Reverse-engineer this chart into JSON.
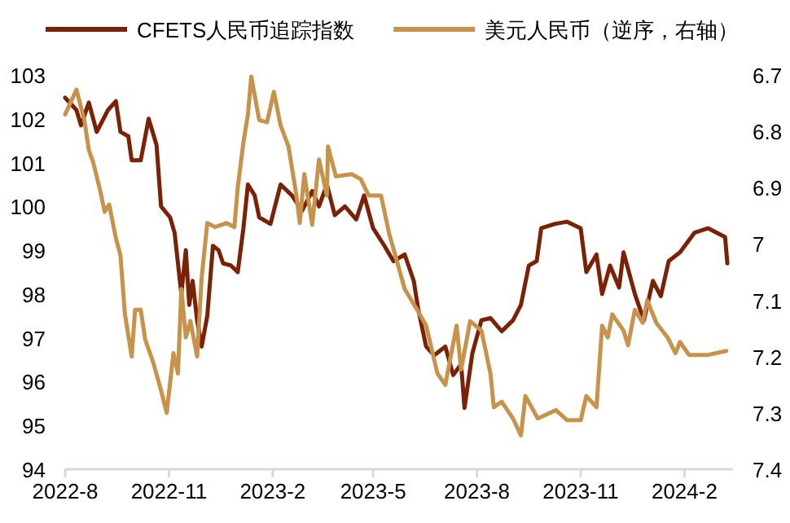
{
  "chart_data": {
    "type": "line",
    "legend": "top",
    "grid": false,
    "xlim": [
      "2022-08-01",
      "2024-03-15"
    ],
    "xticks": [
      {
        "value": "2022-08-01",
        "label": "2022-8"
      },
      {
        "value": "2022-11-01",
        "label": "2022-11"
      },
      {
        "value": "2023-02-01",
        "label": "2023-2"
      },
      {
        "value": "2023-05-01",
        "label": "2023-5"
      },
      {
        "value": "2023-08-01",
        "label": "2023-8"
      },
      {
        "value": "2023-11-01",
        "label": "2023-11"
      },
      {
        "value": "2024-02-01",
        "label": "2024-2"
      }
    ],
    "ylim": [
      94,
      103
    ],
    "yticks": [
      94,
      95,
      96,
      97,
      98,
      99,
      100,
      101,
      102,
      103
    ],
    "y2lim": [
      7.4,
      6.7
    ],
    "y2ticks": [
      7.4,
      7.3,
      7.2,
      7.1,
      7,
      6.9,
      6.8,
      6.7
    ],
    "series": [
      {
        "name": "CFETS人民币追踪指数",
        "color": "#7b2105",
        "x": [
          "2022-08-01",
          "2022-08-11",
          "2022-08-15",
          "2022-08-22",
          "2022-08-29",
          "2022-09-08",
          "2022-09-15",
          "2022-09-19",
          "2022-09-26",
          "2022-09-29",
          "2022-10-07",
          "2022-10-14",
          "2022-10-21",
          "2022-10-25",
          "2022-11-02",
          "2022-11-06",
          "2022-11-12",
          "2022-11-16",
          "2022-11-19",
          "2022-11-22",
          "2022-11-26",
          "2022-11-30",
          "2022-12-05",
          "2022-12-10",
          "2022-12-15",
          "2022-12-19",
          "2022-12-26",
          "2023-01-01",
          "2023-01-06",
          "2023-01-10",
          "2023-01-16",
          "2023-01-20",
          "2023-01-30",
          "2023-02-08",
          "2023-02-18",
          "2023-02-27",
          "2023-03-08",
          "2023-03-14",
          "2023-03-21",
          "2023-03-28",
          "2023-04-06",
          "2023-04-16",
          "2023-04-23",
          "2023-05-01",
          "2023-05-11",
          "2023-05-19",
          "2023-05-29",
          "2023-06-06",
          "2023-06-10",
          "2023-06-17",
          "2023-06-24",
          "2023-07-04",
          "2023-07-11",
          "2023-07-18",
          "2023-07-21",
          "2023-07-28",
          "2023-08-05",
          "2023-08-13",
          "2023-08-23",
          "2023-09-02",
          "2023-09-09",
          "2023-09-16",
          "2023-09-23",
          "2023-09-27",
          "2023-10-09",
          "2023-10-20",
          "2023-11-01",
          "2023-11-06",
          "2023-11-15",
          "2023-11-20",
          "2023-11-27",
          "2023-12-05",
          "2023-12-09",
          "2023-12-19",
          "2023-12-27",
          "2024-01-04",
          "2024-01-11",
          "2024-01-18",
          "2024-01-28",
          "2024-02-10",
          "2024-02-22",
          "2024-03-08",
          "2024-03-10"
        ],
        "values": [
          102.48,
          102.2,
          101.85,
          102.37,
          101.7,
          102.2,
          102.4,
          101.7,
          101.6,
          101.05,
          101.05,
          102.0,
          101.4,
          100.0,
          99.75,
          99.4,
          98.0,
          99.0,
          97.75,
          98.3,
          97.4,
          96.8,
          97.5,
          99.1,
          99.0,
          98.7,
          98.65,
          98.5,
          99.5,
          100.5,
          100.25,
          99.75,
          99.6,
          100.5,
          100.25,
          99.9,
          100.35,
          100.0,
          100.5,
          99.8,
          100.0,
          99.7,
          100.25,
          99.5,
          99.1,
          98.75,
          98.9,
          98.3,
          97.65,
          96.8,
          96.6,
          96.8,
          96.15,
          96.4,
          95.4,
          96.65,
          97.4,
          97.45,
          97.15,
          97.4,
          97.75,
          98.65,
          98.75,
          99.5,
          99.6,
          99.65,
          99.5,
          98.5,
          98.9,
          98.0,
          98.65,
          98.15,
          98.95,
          98.0,
          97.4,
          98.3,
          97.95,
          98.75,
          98.95,
          99.4,
          99.5,
          99.3,
          98.7
        ]
      },
      {
        "name": "美元人民币（逆序，右轴）",
        "color": "#c8924a",
        "axis": "y2",
        "x": [
          "2022-08-01",
          "2022-08-11",
          "2022-08-18",
          "2022-08-22",
          "2022-08-26",
          "2022-09-01",
          "2022-09-05",
          "2022-09-09",
          "2022-09-15",
          "2022-09-19",
          "2022-09-23",
          "2022-09-29",
          "2022-10-02",
          "2022-10-07",
          "2022-10-11",
          "2022-10-18",
          "2022-10-25",
          "2022-10-30",
          "2022-11-05",
          "2022-11-09",
          "2022-11-12",
          "2022-11-16",
          "2022-11-20",
          "2022-11-26",
          "2022-11-30",
          "2022-12-05",
          "2022-12-12",
          "2022-12-22",
          "2022-12-29",
          "2023-01-01",
          "2023-01-06",
          "2023-01-10",
          "2023-01-13",
          "2023-01-20",
          "2023-01-27",
          "2023-02-02",
          "2023-02-08",
          "2023-02-15",
          "2023-02-22",
          "2023-02-25",
          "2023-03-01",
          "2023-03-08",
          "2023-03-14",
          "2023-03-21",
          "2023-03-22",
          "2023-03-29",
          "2023-04-12",
          "2023-04-20",
          "2023-04-27",
          "2023-05-08",
          "2023-05-15",
          "2023-05-22",
          "2023-05-29",
          "2023-06-09",
          "2023-06-17",
          "2023-06-27",
          "2023-07-04",
          "2023-07-14",
          "2023-07-18",
          "2023-07-26",
          "2023-08-05",
          "2023-08-13",
          "2023-08-16",
          "2023-08-23",
          "2023-09-02",
          "2023-09-09",
          "2023-09-13",
          "2023-09-24",
          "2023-10-10",
          "2023-10-20",
          "2023-11-01",
          "2023-11-06",
          "2023-11-15",
          "2023-11-20",
          "2023-11-25",
          "2023-11-29",
          "2023-12-09",
          "2023-12-13",
          "2023-12-19",
          "2023-12-26",
          "2023-12-30",
          "2024-01-07",
          "2024-01-17",
          "2024-01-24",
          "2024-01-28",
          "2024-02-05",
          "2024-02-22",
          "2024-03-09"
        ],
        "values": [
          6.77,
          6.726,
          6.78,
          6.833,
          6.856,
          6.905,
          6.943,
          6.93,
          6.99,
          7.02,
          7.125,
          7.2,
          7.117,
          7.117,
          7.17,
          7.21,
          7.26,
          7.3,
          7.194,
          7.23,
          7.08,
          7.166,
          7.137,
          7.2,
          7.06,
          6.963,
          6.97,
          6.963,
          6.97,
          6.9,
          6.82,
          6.77,
          6.703,
          6.78,
          6.784,
          6.73,
          6.79,
          6.827,
          6.914,
          6.963,
          6.876,
          6.966,
          6.85,
          6.914,
          6.827,
          6.88,
          6.876,
          6.885,
          6.914,
          6.914,
          6.98,
          7.03,
          7.08,
          7.117,
          7.145,
          7.23,
          7.25,
          7.145,
          7.223,
          7.137,
          7.154,
          7.23,
          7.29,
          7.28,
          7.31,
          7.34,
          7.27,
          7.31,
          7.295,
          7.313,
          7.313,
          7.27,
          7.29,
          7.145,
          7.166,
          7.125,
          7.154,
          7.18,
          7.117,
          7.14,
          7.1,
          7.14,
          7.166,
          7.194,
          7.174,
          7.197,
          7.197,
          7.19
        ]
      }
    ]
  }
}
